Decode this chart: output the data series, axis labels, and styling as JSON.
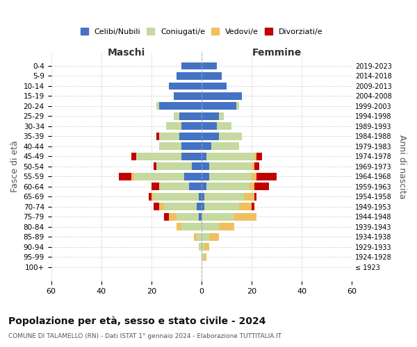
{
  "age_groups": [
    "100+",
    "95-99",
    "90-94",
    "85-89",
    "80-84",
    "75-79",
    "70-74",
    "65-69",
    "60-64",
    "55-59",
    "50-54",
    "45-49",
    "40-44",
    "35-39",
    "30-34",
    "25-29",
    "20-24",
    "15-19",
    "10-14",
    "5-9",
    "0-4"
  ],
  "birth_years": [
    "≤ 1923",
    "1924-1928",
    "1929-1933",
    "1934-1938",
    "1939-1943",
    "1944-1948",
    "1949-1953",
    "1954-1958",
    "1959-1963",
    "1964-1968",
    "1969-1973",
    "1974-1978",
    "1979-1983",
    "1984-1988",
    "1989-1993",
    "1994-1998",
    "1999-2003",
    "2004-2008",
    "2009-2013",
    "2014-2018",
    "2019-2023"
  ],
  "maschi": {
    "celibi": [
      0,
      0,
      0,
      0,
      0,
      1,
      2,
      1,
      5,
      7,
      4,
      8,
      8,
      9,
      8,
      9,
      17,
      11,
      13,
      10,
      8
    ],
    "coniugati": [
      0,
      0,
      1,
      2,
      8,
      9,
      13,
      18,
      12,
      20,
      14,
      18,
      9,
      8,
      6,
      2,
      1,
      0,
      0,
      0,
      0
    ],
    "vedovi": [
      0,
      0,
      0,
      1,
      2,
      3,
      2,
      1,
      0,
      1,
      0,
      0,
      0,
      0,
      0,
      0,
      0,
      0,
      0,
      0,
      0
    ],
    "divorziati": [
      0,
      0,
      0,
      0,
      0,
      2,
      2,
      1,
      3,
      5,
      1,
      2,
      0,
      1,
      0,
      0,
      0,
      0,
      0,
      0,
      0
    ]
  },
  "femmine": {
    "nubili": [
      0,
      0,
      0,
      0,
      0,
      0,
      1,
      1,
      2,
      3,
      3,
      2,
      4,
      7,
      6,
      7,
      14,
      16,
      10,
      8,
      6
    ],
    "coniugate": [
      0,
      1,
      1,
      3,
      7,
      13,
      14,
      16,
      17,
      17,
      17,
      19,
      11,
      9,
      6,
      2,
      1,
      0,
      0,
      0,
      0
    ],
    "vedove": [
      0,
      1,
      2,
      4,
      6,
      9,
      5,
      4,
      2,
      2,
      1,
      1,
      0,
      0,
      0,
      0,
      0,
      0,
      0,
      0,
      0
    ],
    "divorziate": [
      0,
      0,
      0,
      0,
      0,
      0,
      1,
      1,
      6,
      8,
      2,
      2,
      0,
      0,
      0,
      0,
      0,
      0,
      0,
      0,
      0
    ]
  },
  "colors": {
    "celibi": "#4472c4",
    "coniugati": "#c5d9a0",
    "vedovi": "#f0c060",
    "divorziati": "#c00000"
  },
  "legend_labels": [
    "Celibi/Nubili",
    "Coniugati/e",
    "Vedovi/e",
    "Divorziati/e"
  ],
  "title": "Popolazione per età, sesso e stato civile - 2024",
  "subtitle": "COMUNE DI TALAMELLO (RN) - Dati ISTAT 1° gennaio 2024 - Elaborazione TUTTITALIA.IT",
  "ylabel": "Fasce di età",
  "ylabel_right": "Anni di nascita",
  "xlabel_maschi": "Maschi",
  "xlabel_femmine": "Femmine",
  "xlim": 60,
  "background_color": "#ffffff",
  "grid_color": "#cccccc"
}
